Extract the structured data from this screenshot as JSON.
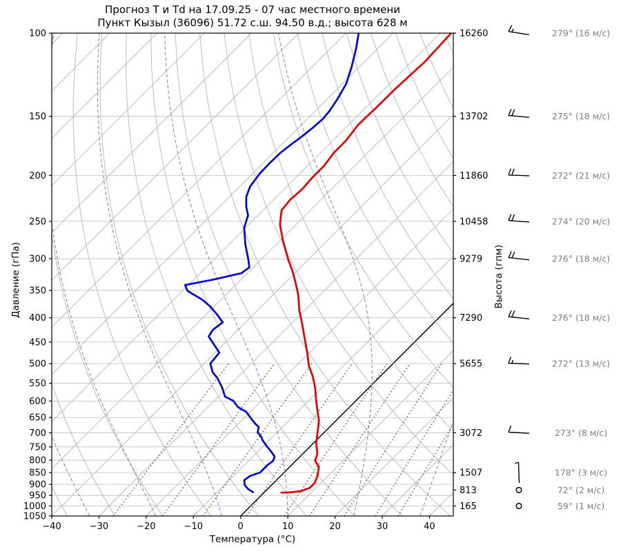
{
  "title": {
    "line1": "Прогноз Т и Td на 17.09.25 - 07 час местного времени",
    "line2": "Пункт Кызыл (36096) 51.72 с.ш. 94.50 в.д.; высота 628 м"
  },
  "axes": {
    "x": {
      "label": "Температура (°C)",
      "min": -40,
      "max": 45,
      "ticks": [
        -40,
        -30,
        -20,
        -10,
        0,
        10,
        20,
        30,
        40
      ],
      "tick_labels": [
        "−40",
        "−30",
        "−20",
        "−10",
        "0",
        "10",
        "20",
        "30",
        "40"
      ]
    },
    "y_left": {
      "label": "Давление (гПа)",
      "scale": "log",
      "min": 100,
      "max": 1050,
      "ticks": [
        100,
        150,
        200,
        250,
        300,
        350,
        400,
        450,
        500,
        550,
        600,
        650,
        700,
        750,
        800,
        850,
        900,
        950,
        1000,
        1050
      ]
    },
    "y_right": {
      "label": "Высота (гпм)",
      "levels": [
        {
          "p": 100,
          "label": "16260"
        },
        {
          "p": 150,
          "label": "13702"
        },
        {
          "p": 200,
          "label": "11860"
        },
        {
          "p": 250,
          "label": "10458"
        },
        {
          "p": 300,
          "label": "9279"
        },
        {
          "p": 400,
          "label": "7290"
        },
        {
          "p": 500,
          "label": "5655"
        },
        {
          "p": 700,
          "label": "3072"
        },
        {
          "p": 850,
          "label": "1507"
        },
        {
          "p": 925,
          "label": "813"
        },
        {
          "p": 1000,
          "label": "165"
        }
      ]
    }
  },
  "winds": [
    {
      "p": 100,
      "dir": 279,
      "speed": 16,
      "label": "279° (16 м/с)"
    },
    {
      "p": 150,
      "dir": 275,
      "speed": 18,
      "label": "275° (18 м/с)"
    },
    {
      "p": 200,
      "dir": 272,
      "speed": 21,
      "label": "272° (21 м/с)"
    },
    {
      "p": 250,
      "dir": 274,
      "speed": 20,
      "label": "274° (20 м/с)"
    },
    {
      "p": 300,
      "dir": 276,
      "speed": 18,
      "label": "276° (18 м/с)"
    },
    {
      "p": 400,
      "dir": 276,
      "speed": 18,
      "label": "276° (18 м/с)"
    },
    {
      "p": 500,
      "dir": 272,
      "speed": 13,
      "label": "272° (13 м/с)"
    },
    {
      "p": 700,
      "dir": 273,
      "speed": 8,
      "label": "273° (8 м/с)"
    },
    {
      "p": 850,
      "dir": 178,
      "speed": 3,
      "label": "178° (3 м/с)"
    },
    {
      "p": 925,
      "dir": 72,
      "speed": 2,
      "label": "72° (2 м/с)"
    },
    {
      "p": 1000,
      "dir": 59,
      "speed": 1,
      "label": "59° (1 м/с)"
    }
  ],
  "chart_data": {
    "type": "line",
    "subtype": "skew-t-log-p",
    "skew_deg": 45,
    "xlabel": "Температура (°C)",
    "ylabel_left": "Давление (гПа)",
    "ylabel_right": "Высота (гпм)",
    "xlim": [
      -40,
      45
    ],
    "plim": [
      100,
      1050
    ],
    "grid": true,
    "series": [
      {
        "name": "temperature",
        "color": "#e50000",
        "width": 2.7,
        "points_p_t": [
          [
            100,
            -57.7
          ],
          [
            115,
            -57.2
          ],
          [
            130,
            -57.7
          ],
          [
            145,
            -57.8
          ],
          [
            156,
            -58.0
          ],
          [
            169,
            -57.2
          ],
          [
            179,
            -57.2
          ],
          [
            191,
            -56.5
          ],
          [
            202,
            -56.5
          ],
          [
            214,
            -56.2
          ],
          [
            225,
            -56.5
          ],
          [
            237,
            -56.1
          ],
          [
            254,
            -53.4
          ],
          [
            274,
            -49.5
          ],
          [
            302,
            -44.1
          ],
          [
            318,
            -41.0
          ],
          [
            337,
            -37.8
          ],
          [
            358,
            -34.6
          ],
          [
            386,
            -31.1
          ],
          [
            410,
            -27.9
          ],
          [
            441,
            -24.2
          ],
          [
            472,
            -20.7
          ],
          [
            505,
            -17.4
          ],
          [
            531,
            -14.4
          ],
          [
            562,
            -11.4
          ],
          [
            593,
            -8.9
          ],
          [
            628,
            -6.1
          ],
          [
            660,
            -3.6
          ],
          [
            699,
            -1.4
          ],
          [
            735,
            0.5
          ],
          [
            776,
            3.1
          ],
          [
            803,
            4.1
          ],
          [
            827,
            6.2
          ],
          [
            864,
            7.8
          ],
          [
            894,
            8.7
          ],
          [
            915,
            8.7
          ],
          [
            930,
            7.6
          ],
          [
            936,
            5.4
          ],
          [
            937,
            3.7
          ]
        ]
      },
      {
        "name": "dewpoint",
        "color": "#0000dd",
        "width": 2.7,
        "points_p_t": [
          [
            100,
            -77.3
          ],
          [
            108,
            -74.5
          ],
          [
            118,
            -71.6
          ],
          [
            128,
            -69.2
          ],
          [
            138,
            -67.8
          ],
          [
            146,
            -67.0
          ],
          [
            152,
            -66.7
          ],
          [
            159,
            -67.0
          ],
          [
            166,
            -67.5
          ],
          [
            173,
            -68.1
          ],
          [
            179,
            -68.5
          ],
          [
            188,
            -68.6
          ],
          [
            198,
            -68.5
          ],
          [
            211,
            -67.8
          ],
          [
            222,
            -66.4
          ],
          [
            233,
            -64.3
          ],
          [
            243,
            -62.1
          ],
          [
            258,
            -60.3
          ],
          [
            280,
            -56.5
          ],
          [
            300,
            -52.9
          ],
          [
            313,
            -50.8
          ],
          [
            322,
            -51.3
          ],
          [
            332,
            -55.8
          ],
          [
            341,
            -60.7
          ],
          [
            351,
            -58.9
          ],
          [
            366,
            -54.0
          ],
          [
            379,
            -50.7
          ],
          [
            394,
            -47.6
          ],
          [
            409,
            -44.8
          ],
          [
            424,
            -45.3
          ],
          [
            438,
            -44.8
          ],
          [
            456,
            -41.9
          ],
          [
            474,
            -39.1
          ],
          [
            500,
            -38.7
          ],
          [
            522,
            -36.3
          ],
          [
            536,
            -34.2
          ],
          [
            562,
            -31.1
          ],
          [
            587,
            -28.6
          ],
          [
            599,
            -26.0
          ],
          [
            618,
            -23.6
          ],
          [
            632,
            -20.9
          ],
          [
            656,
            -18.1
          ],
          [
            672,
            -16.2
          ],
          [
            681,
            -15.0
          ],
          [
            699,
            -14.1
          ],
          [
            714,
            -12.4
          ],
          [
            726,
            -11.4
          ],
          [
            750,
            -9.0
          ],
          [
            768,
            -7.1
          ],
          [
            786,
            -5.4
          ],
          [
            803,
            -4.8
          ],
          [
            819,
            -5.1
          ],
          [
            850,
            -5.1
          ],
          [
            864,
            -6.5
          ],
          [
            882,
            -6.8
          ],
          [
            903,
            -5.7
          ],
          [
            921,
            -4.1
          ],
          [
            935,
            -2.4
          ]
        ]
      }
    ],
    "background": {
      "isobar_step_hpa": 50,
      "isotherm_step_c": 10,
      "isotherm_range_c": [
        -150,
        40
      ],
      "isotherm_highlight_c": 0,
      "dry_adiabats_theta_c": [
        -40,
        -30,
        -20,
        -10,
        0,
        10,
        20,
        30,
        40,
        50,
        60,
        70,
        80,
        90,
        100,
        110,
        120,
        130,
        140,
        150,
        160,
        170
      ],
      "moist_adiabat_surface_starts_c": [
        -46,
        -32,
        -18,
        -4,
        10,
        24,
        38,
        52
      ],
      "mixing_ratio_g_kg": [
        0.4,
        1,
        2,
        4,
        7,
        10,
        16,
        24,
        32
      ],
      "mixing_ratio_top_hpa": 500,
      "colors": {
        "grid_gray": "#b3b3b3",
        "isobar_gray": "#bdbdbd",
        "isotherm_highlight": "#000000",
        "moist_adiabat_blue": "#7878e8",
        "mixing_ratio_brown": "#8a5a3b",
        "wind_label_gray": "#7d7d7d",
        "spine_black": "#000000"
      }
    }
  }
}
